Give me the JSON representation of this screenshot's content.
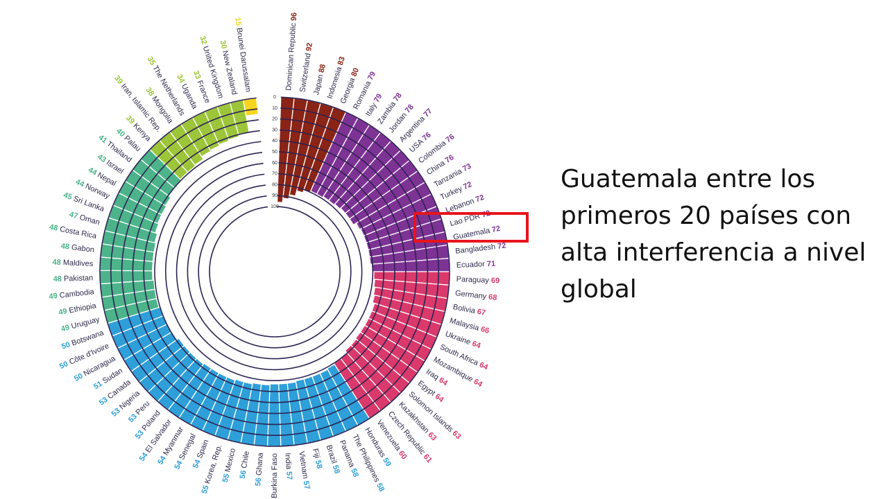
{
  "slide": {
    "text": "Guatemala entre los primeros 20 países con alta interferencia a nivel global"
  },
  "chart_data": {
    "type": "radial-bar",
    "scale": {
      "min": 0,
      "max": 100,
      "ticks": [
        0,
        10,
        20,
        30,
        40,
        50,
        60,
        70,
        80,
        90,
        100
      ]
    },
    "colors": {
      "very_high": "#8a2416",
      "high": "#7d3394",
      "considerable": "#d93a6b",
      "moderate": "#2e9fd9",
      "low": "#4cb38a",
      "very_low": "#9dc53a",
      "minimal": "#f7d51e"
    },
    "highlight": "Guatemala",
    "countries": [
      {
        "name": "Dominican Republic",
        "value": 96,
        "group": "very_high"
      },
      {
        "name": "Switzerland",
        "value": 92,
        "group": "very_high"
      },
      {
        "name": "Japan",
        "value": 88,
        "group": "very_high"
      },
      {
        "name": "Indonesia",
        "value": 83,
        "group": "very_high"
      },
      {
        "name": "Georgia",
        "value": 80,
        "group": "very_high"
      },
      {
        "name": "Romania",
        "value": 79,
        "group": "high"
      },
      {
        "name": "Italy",
        "value": 79,
        "group": "high"
      },
      {
        "name": "Zambia",
        "value": 78,
        "group": "high"
      },
      {
        "name": "Jordan",
        "value": 78,
        "group": "high"
      },
      {
        "name": "Argentina",
        "value": 77,
        "group": "high"
      },
      {
        "name": "USA",
        "value": 76,
        "group": "high"
      },
      {
        "name": "Colombia",
        "value": 76,
        "group": "high"
      },
      {
        "name": "China",
        "value": 76,
        "group": "high"
      },
      {
        "name": "Tanzania",
        "value": 73,
        "group": "high"
      },
      {
        "name": "Turkey",
        "value": 72,
        "group": "high"
      },
      {
        "name": "Lebanon",
        "value": 72,
        "group": "high"
      },
      {
        "name": "Lao PDR",
        "value": 72,
        "group": "high"
      },
      {
        "name": "Guatemala",
        "value": 72,
        "group": "high"
      },
      {
        "name": "Bangladesh",
        "value": 72,
        "group": "high"
      },
      {
        "name": "Ecuador",
        "value": 71,
        "group": "high"
      },
      {
        "name": "Paraguay",
        "value": 69,
        "group": "considerable"
      },
      {
        "name": "Germany",
        "value": 68,
        "group": "considerable"
      },
      {
        "name": "Bolivia",
        "value": 67,
        "group": "considerable"
      },
      {
        "name": "Malaysia",
        "value": 66,
        "group": "considerable"
      },
      {
        "name": "Ukraine",
        "value": 64,
        "group": "considerable"
      },
      {
        "name": "South Africa",
        "value": 64,
        "group": "considerable"
      },
      {
        "name": "Mozambique",
        "value": 64,
        "group": "considerable"
      },
      {
        "name": "Iraq",
        "value": 64,
        "group": "considerable"
      },
      {
        "name": "Egypt",
        "value": 64,
        "group": "considerable"
      },
      {
        "name": "Solomon Islands",
        "value": 63,
        "group": "considerable"
      },
      {
        "name": "Kazakhstan",
        "value": 63,
        "group": "considerable"
      },
      {
        "name": "Czech Republic",
        "value": 61,
        "group": "considerable"
      },
      {
        "name": "Venezuela",
        "value": 60,
        "group": "considerable"
      },
      {
        "name": "Honduras",
        "value": 59,
        "group": "moderate"
      },
      {
        "name": "The Philippines",
        "value": 58,
        "group": "moderate"
      },
      {
        "name": "Panama",
        "value": 58,
        "group": "moderate"
      },
      {
        "name": "Brazil",
        "value": 58,
        "group": "moderate"
      },
      {
        "name": "Fiji",
        "value": 58,
        "group": "moderate"
      },
      {
        "name": "Vietnam",
        "value": 57,
        "group": "moderate"
      },
      {
        "name": "India",
        "value": 57,
        "group": "moderate"
      },
      {
        "name": "Burkina Faso",
        "value": 57,
        "group": "moderate"
      },
      {
        "name": "Ghana",
        "value": 56,
        "group": "moderate"
      },
      {
        "name": "Chile",
        "value": 56,
        "group": "moderate"
      },
      {
        "name": "Mexico",
        "value": 55,
        "group": "moderate"
      },
      {
        "name": "Korea, Rep.",
        "value": 55,
        "group": "moderate"
      },
      {
        "name": "Spain",
        "value": 54,
        "group": "moderate"
      },
      {
        "name": "Senegal",
        "value": 54,
        "group": "moderate"
      },
      {
        "name": "Myanmar",
        "value": 54,
        "group": "moderate"
      },
      {
        "name": "El Salvador",
        "value": 54,
        "group": "moderate"
      },
      {
        "name": "Poland",
        "value": 53,
        "group": "moderate"
      },
      {
        "name": "Peru",
        "value": 53,
        "group": "moderate"
      },
      {
        "name": "Nigeria",
        "value": 53,
        "group": "moderate"
      },
      {
        "name": "Canada",
        "value": 53,
        "group": "moderate"
      },
      {
        "name": "Sudan",
        "value": 51,
        "group": "moderate"
      },
      {
        "name": "Nicaragua",
        "value": 50,
        "group": "moderate"
      },
      {
        "name": "Côte d'Ivoire",
        "value": 50,
        "group": "moderate"
      },
      {
        "name": "Botswana",
        "value": 50,
        "group": "moderate"
      },
      {
        "name": "Uruguay",
        "value": 49,
        "group": "low"
      },
      {
        "name": "Ethiopia",
        "value": 49,
        "group": "low"
      },
      {
        "name": "Cambodia",
        "value": 49,
        "group": "low"
      },
      {
        "name": "Pakistan",
        "value": 48,
        "group": "low"
      },
      {
        "name": "Maldives",
        "value": 48,
        "group": "low"
      },
      {
        "name": "Gabon",
        "value": 48,
        "group": "low"
      },
      {
        "name": "Costa Rica",
        "value": 48,
        "group": "low"
      },
      {
        "name": "Oman",
        "value": 47,
        "group": "low"
      },
      {
        "name": "Sri Lanka",
        "value": 45,
        "group": "low"
      },
      {
        "name": "Norway",
        "value": 44,
        "group": "low"
      },
      {
        "name": "Nepal",
        "value": 44,
        "group": "low"
      },
      {
        "name": "Israel",
        "value": 43,
        "group": "low"
      },
      {
        "name": "Thailand",
        "value": 41,
        "group": "low"
      },
      {
        "name": "Palau",
        "value": 40,
        "group": "low"
      },
      {
        "name": "Kenya",
        "value": 39,
        "group": "very_low"
      },
      {
        "name": "Iran, Islamic Rep.",
        "value": 39,
        "group": "very_low"
      },
      {
        "name": "Mongolia",
        "value": 38,
        "group": "very_low"
      },
      {
        "name": "The Netherlands",
        "value": 35,
        "group": "very_low"
      },
      {
        "name": "Uganda",
        "value": 34,
        "group": "very_low"
      },
      {
        "name": "France",
        "value": 33,
        "group": "very_low"
      },
      {
        "name": "United Kingdom",
        "value": 32,
        "group": "very_low"
      },
      {
        "name": "New Zealand",
        "value": 30,
        "group": "very_low"
      },
      {
        "name": "Brunei Darussalam",
        "value": 15,
        "group": "minimal"
      }
    ]
  }
}
